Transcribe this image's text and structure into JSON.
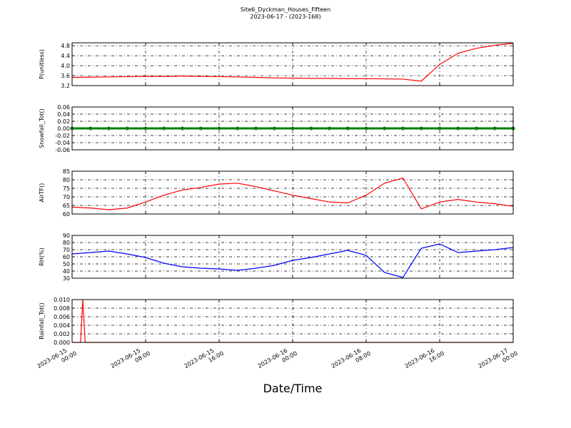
{
  "title": "Site6_Dyckman_Houses_Fifteen",
  "subtitle": "2023-06-17 - (2023-168)",
  "xlabel": "Date/Time",
  "chart_data": [
    {
      "type": "line",
      "ylabel": "P(unitless)",
      "grid": true,
      "show_xticklabels": false,
      "xlim": [
        "2023-06-15 00:00",
        "2023-06-17 00:00"
      ],
      "xticks": [
        "2023-06-15 00:00",
        "2023-06-15 08:00",
        "2023-06-15 16:00",
        "2023-06-16 00:00",
        "2023-06-16 08:00",
        "2023-06-16 16:00",
        "2023-06-17 00:00"
      ],
      "ylim": [
        3.2,
        4.92
      ],
      "yticks": [
        3.2,
        3.6,
        {
          "value": 4.0,
          "label": "4.0"
        },
        4.4,
        4.8
      ],
      "x": [
        "2023-06-15 00:00",
        "2023-06-15 02:00",
        "2023-06-15 04:00",
        "2023-06-15 06:00",
        "2023-06-15 08:00",
        "2023-06-15 10:00",
        "2023-06-15 12:00",
        "2023-06-15 14:00",
        "2023-06-15 16:00",
        "2023-06-15 18:00",
        "2023-06-15 20:00",
        "2023-06-15 22:00",
        "2023-06-16 00:00",
        "2023-06-16 02:00",
        "2023-06-16 04:00",
        "2023-06-16 06:00",
        "2023-06-16 08:00",
        "2023-06-16 10:00",
        "2023-06-16 12:00",
        "2023-06-16 14:00",
        "2023-06-16 16:00",
        "2023-06-16 18:00",
        "2023-06-16 20:00",
        "2023-06-16 22:00",
        "2023-06-17 00:00"
      ],
      "series": [
        {
          "name": "P(unitless)",
          "color": "#ff0000",
          "values": [
            3.53,
            3.54,
            3.55,
            3.56,
            3.57,
            3.57,
            3.58,
            3.57,
            3.56,
            3.55,
            3.53,
            3.51,
            3.5,
            3.49,
            3.49,
            3.48,
            3.48,
            3.47,
            3.46,
            3.38,
            4.05,
            4.5,
            4.7,
            4.82,
            4.9
          ]
        }
      ]
    },
    {
      "type": "line",
      "ylabel": "Snowfall_Tot()",
      "grid": true,
      "show_xticklabels": false,
      "xlim": [
        "2023-06-15 00:00",
        "2023-06-17 00:00"
      ],
      "xticks": [
        "2023-06-15 00:00",
        "2023-06-15 08:00",
        "2023-06-15 16:00",
        "2023-06-16 00:00",
        "2023-06-16 08:00",
        "2023-06-16 16:00",
        "2023-06-17 00:00"
      ],
      "ylim": [
        -0.06,
        0.06
      ],
      "yticks": [
        -0.06,
        -0.04,
        -0.02,
        {
          "value": 0,
          "label": "0.00"
        },
        0.02,
        0.04,
        0.06
      ],
      "x": [
        "2023-06-15 00:00",
        "2023-06-15 02:00",
        "2023-06-15 04:00",
        "2023-06-15 06:00",
        "2023-06-15 08:00",
        "2023-06-15 10:00",
        "2023-06-15 12:00",
        "2023-06-15 14:00",
        "2023-06-15 16:00",
        "2023-06-15 18:00",
        "2023-06-15 20:00",
        "2023-06-15 22:00",
        "2023-06-16 00:00",
        "2023-06-16 02:00",
        "2023-06-16 04:00",
        "2023-06-16 06:00",
        "2023-06-16 08:00",
        "2023-06-16 10:00",
        "2023-06-16 12:00",
        "2023-06-16 14:00",
        "2023-06-16 16:00",
        "2023-06-16 18:00",
        "2023-06-16 20:00",
        "2023-06-16 22:00",
        "2023-06-17 00:00"
      ],
      "series": [
        {
          "name": "Snowfall_Tot()",
          "color": "#008000",
          "marker": true,
          "values": [
            0,
            0,
            0,
            0,
            0,
            0,
            0,
            0,
            0,
            0,
            0,
            0,
            0,
            0,
            0,
            0,
            0,
            0,
            0,
            0,
            0,
            0,
            0,
            0,
            0
          ]
        }
      ]
    },
    {
      "type": "line",
      "ylabel": "AirTF()",
      "grid": true,
      "show_xticklabels": false,
      "xlim": [
        "2023-06-15 00:00",
        "2023-06-17 00:00"
      ],
      "xticks": [
        "2023-06-15 00:00",
        "2023-06-15 08:00",
        "2023-06-15 16:00",
        "2023-06-16 00:00",
        "2023-06-16 08:00",
        "2023-06-16 16:00",
        "2023-06-17 00:00"
      ],
      "ylim": [
        60,
        85
      ],
      "yticks": [
        60,
        65,
        70,
        75,
        80,
        85
      ],
      "x": [
        "2023-06-15 00:00",
        "2023-06-15 02:00",
        "2023-06-15 04:00",
        "2023-06-15 06:00",
        "2023-06-15 08:00",
        "2023-06-15 10:00",
        "2023-06-15 12:00",
        "2023-06-15 14:00",
        "2023-06-15 16:00",
        "2023-06-15 18:00",
        "2023-06-15 20:00",
        "2023-06-15 22:00",
        "2023-06-16 00:00",
        "2023-06-16 02:00",
        "2023-06-16 04:00",
        "2023-06-16 06:00",
        "2023-06-16 08:00",
        "2023-06-16 10:00",
        "2023-06-16 12:00",
        "2023-06-16 14:00",
        "2023-06-16 16:00",
        "2023-06-16 18:00",
        "2023-06-16 20:00",
        "2023-06-16 22:00",
        "2023-06-17 00:00"
      ],
      "series": [
        {
          "name": "AirTF()",
          "color": "#ff0000",
          "values": [
            64,
            63.5,
            62.5,
            63.5,
            67,
            71,
            74,
            75.5,
            77.5,
            78,
            76,
            73.5,
            71,
            69,
            67,
            66.5,
            71,
            78,
            81,
            63,
            67,
            68.5,
            67,
            66,
            64.5
          ]
        }
      ]
    },
    {
      "type": "line",
      "ylabel": "RH(%)",
      "grid": true,
      "show_xticklabels": false,
      "xlim": [
        "2023-06-15 00:00",
        "2023-06-17 00:00"
      ],
      "xticks": [
        "2023-06-15 00:00",
        "2023-06-15 08:00",
        "2023-06-15 16:00",
        "2023-06-16 00:00",
        "2023-06-16 08:00",
        "2023-06-16 16:00",
        "2023-06-17 00:00"
      ],
      "ylim": [
        30,
        90
      ],
      "yticks": [
        30,
        40,
        50,
        60,
        70,
        80,
        90
      ],
      "x": [
        "2023-06-15 00:00",
        "2023-06-15 02:00",
        "2023-06-15 04:00",
        "2023-06-15 06:00",
        "2023-06-15 08:00",
        "2023-06-15 10:00",
        "2023-06-15 12:00",
        "2023-06-15 14:00",
        "2023-06-15 16:00",
        "2023-06-15 18:00",
        "2023-06-15 20:00",
        "2023-06-15 22:00",
        "2023-06-16 00:00",
        "2023-06-16 02:00",
        "2023-06-16 04:00",
        "2023-06-16 06:00",
        "2023-06-16 08:00",
        "2023-06-16 10:00",
        "2023-06-16 12:00",
        "2023-06-16 14:00",
        "2023-06-16 16:00",
        "2023-06-16 18:00",
        "2023-06-16 20:00",
        "2023-06-16 22:00",
        "2023-06-17 00:00"
      ],
      "series": [
        {
          "name": "RH(%)",
          "color": "#0000ff",
          "values": [
            64,
            66,
            68,
            64,
            59,
            51,
            46,
            44,
            43,
            41,
            44,
            48,
            55,
            59,
            64,
            69,
            62,
            38,
            31,
            72,
            78,
            66,
            68,
            70,
            73
          ]
        }
      ]
    },
    {
      "type": "line",
      "ylabel": "Rainfall_Tot()",
      "grid": true,
      "show_xticklabels": true,
      "xlim": [
        "2023-06-15 00:00",
        "2023-06-17 00:00"
      ],
      "xticks": [
        "2023-06-15 00:00",
        "2023-06-15 08:00",
        "2023-06-15 16:00",
        "2023-06-16 00:00",
        "2023-06-16 08:00",
        "2023-06-16 16:00",
        "2023-06-17 00:00"
      ],
      "ylim": [
        0,
        0.01
      ],
      "yticks": [
        {
          "value": 0,
          "label": "0.000"
        },
        0.002,
        0.004,
        0.006,
        0.008,
        {
          "value": 0.01,
          "label": "0.010"
        }
      ],
      "x": [
        "2023-06-15 00:00",
        "2023-06-15 00:55",
        "2023-06-15 01:10",
        "2023-06-15 01:25",
        "2023-06-17 00:00"
      ],
      "series": [
        {
          "name": "Rainfall_Tot()",
          "color": "#ff0000",
          "values": [
            0,
            0,
            0.01,
            0,
            0
          ]
        }
      ]
    }
  ]
}
